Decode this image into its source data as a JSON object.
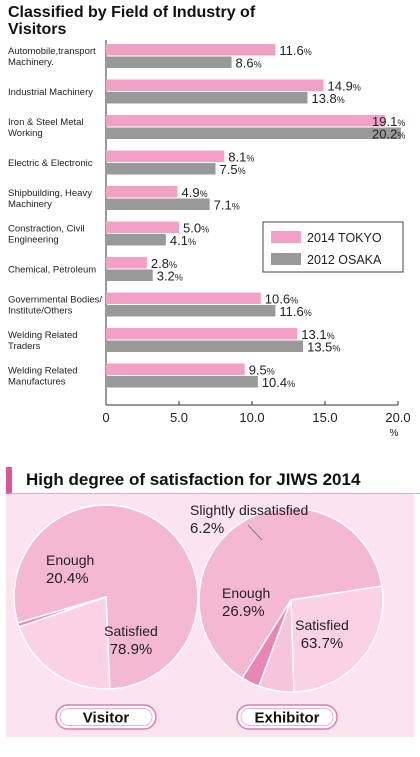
{
  "chart_data": [
    {
      "type": "bar",
      "orientation": "horizontal",
      "title": "Classified by Field of Industry of Visitors",
      "categories": [
        "Automobile,transport Machinery.",
        "Industrial Machinery",
        "Iron & Steel Metal Working",
        "Electric & Electronic",
        "Shipbuilding, Heavy Machinery",
        "Constraction, Civil Engineering",
        "Chemical, Petroleum",
        "Governmental Bodies/ Institute/Others",
        "Welding Related Traders",
        "Welding Related Manufactures"
      ],
      "series": [
        {
          "name": "2014 TOKYO",
          "color": "#f2a0c6",
          "values": [
            11.6,
            14.9,
            19.1,
            8.1,
            4.9,
            5.0,
            2.8,
            10.6,
            13.1,
            9.5
          ]
        },
        {
          "name": "2012 OSAKA",
          "color": "#999999",
          "values": [
            8.6,
            13.8,
            20.2,
            7.5,
            7.1,
            4.1,
            3.2,
            11.6,
            13.5,
            10.4
          ]
        }
      ],
      "value_suffix": "%",
      "xlim": [
        0,
        20
      ],
      "xticks": [
        "0",
        "5.0",
        "10.0",
        "15.0",
        "20.0"
      ],
      "xunit": "%",
      "legend_position": "right-middle",
      "grid": false
    },
    {
      "type": "pie",
      "title": "High degree of satisfaction for JIWS 2014",
      "label": "Visitor",
      "slices": [
        {
          "label": "Satisfied",
          "value": 78.9,
          "display": "78.9%",
          "color": "#f4b8d3"
        },
        {
          "label": "Enough",
          "value": 20.4,
          "display": "20.4%",
          "color": "#fad2e4"
        },
        {
          "label": "",
          "value": 0.7,
          "display": "",
          "color": "#e986b6"
        }
      ]
    },
    {
      "type": "pie",
      "label": "Exhibitor",
      "slices": [
        {
          "label": "Satisfied",
          "value": 63.7,
          "display": "63.7%",
          "color": "#f4b8d3"
        },
        {
          "label": "Enough",
          "value": 26.9,
          "display": "26.9%",
          "color": "#fad2e4"
        },
        {
          "label": "Slightly dissatisfied",
          "value": 6.2,
          "display": "6.2%",
          "color": "#f6c5dc"
        },
        {
          "label": "",
          "value": 3.2,
          "display": "",
          "color": "#e986b6"
        }
      ]
    }
  ]
}
